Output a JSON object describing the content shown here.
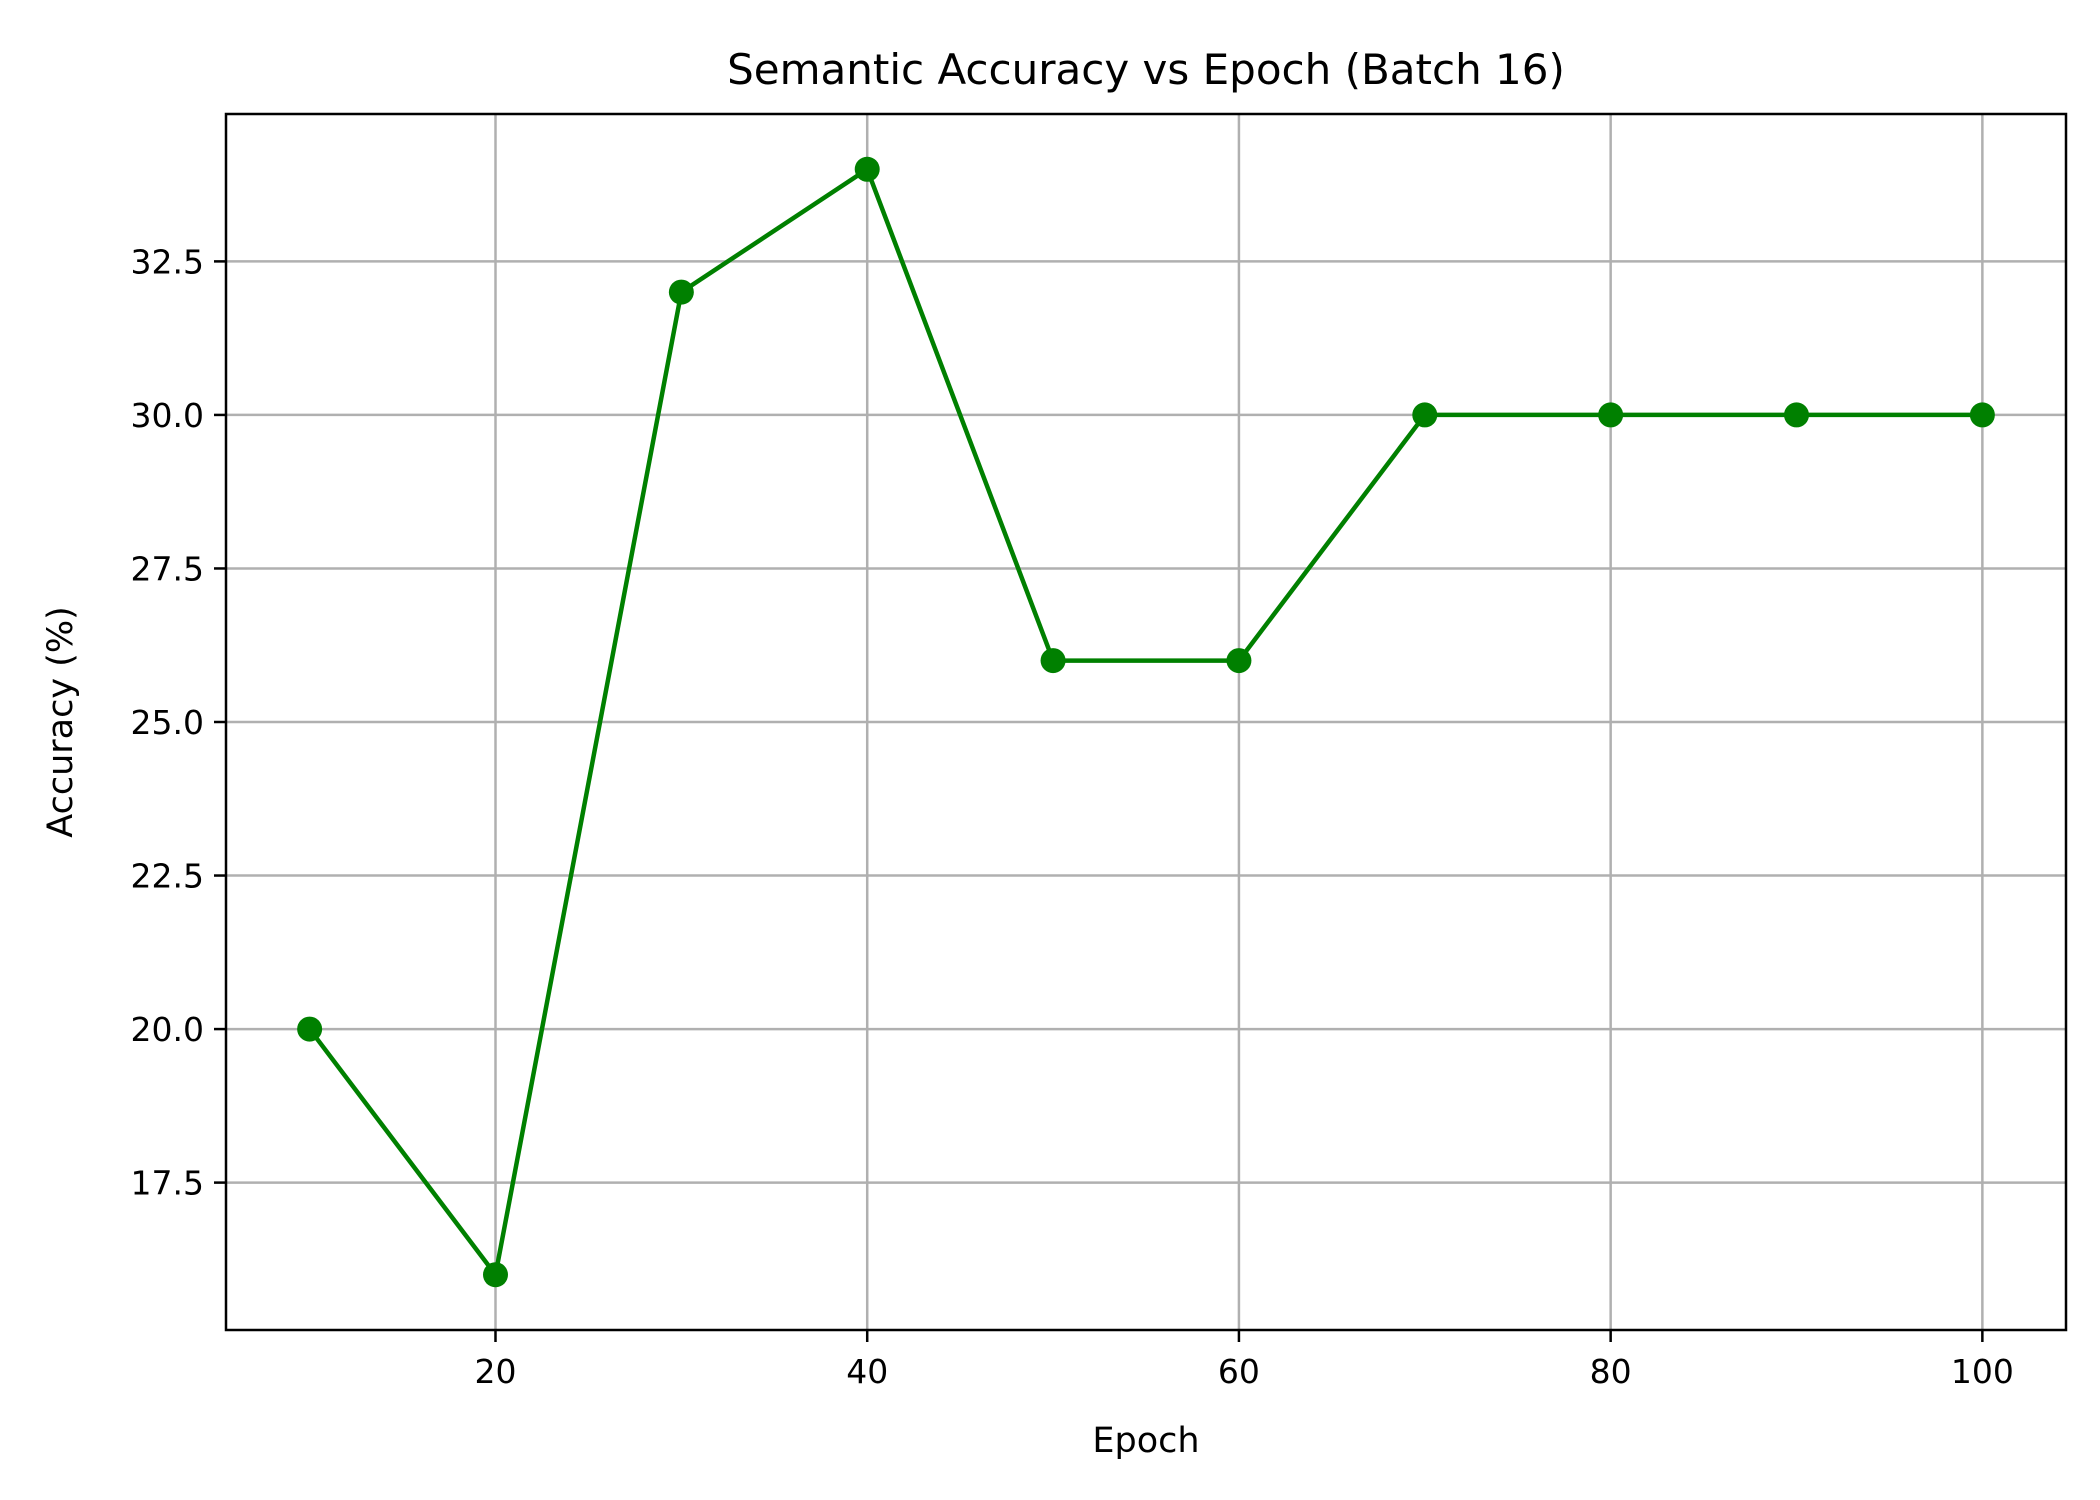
{
  "chart_data": {
    "type": "line",
    "title": "Semantic Accuracy vs Epoch (Batch 16)",
    "xlabel": "Epoch",
    "ylabel": "Accuracy (%)",
    "x": [
      10,
      20,
      30,
      40,
      50,
      60,
      70,
      80,
      90,
      100
    ],
    "series": [
      {
        "values": [
          20,
          16,
          32,
          34,
          26,
          26,
          30,
          30,
          30,
          30
        ],
        "color": "#008000",
        "marker": "circle"
      }
    ],
    "xlim": [
      5.5,
      104.5
    ],
    "ylim": [
      15.1,
      34.9
    ],
    "xticks": [
      20,
      40,
      60,
      80,
      100
    ],
    "xtick_labels": [
      "20",
      "40",
      "60",
      "80",
      "100"
    ],
    "yticks": [
      17.5,
      20.0,
      22.5,
      25.0,
      27.5,
      30.0,
      32.5
    ],
    "ytick_labels": [
      "17.5",
      "20.0",
      "22.5",
      "25.0",
      "27.5",
      "30.0",
      "32.5"
    ],
    "grid": true,
    "legend": "none"
  }
}
